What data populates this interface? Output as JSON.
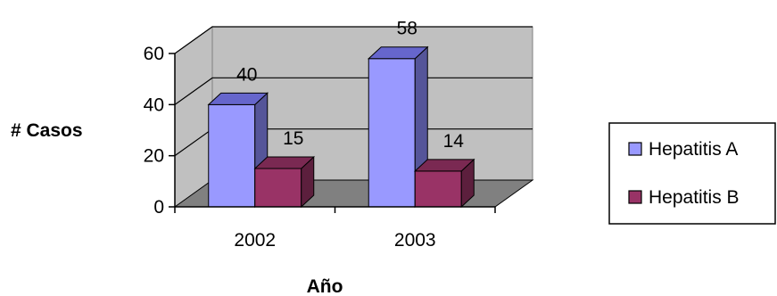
{
  "chart_data": {
    "type": "bar",
    "title": "",
    "xlabel": "Año",
    "ylabel": "# Casos",
    "categories": [
      "2002",
      "2003"
    ],
    "series": [
      {
        "name": "Hepatitis A",
        "values": [
          40,
          58
        ],
        "color": "#9999ff",
        "side": "#555599",
        "top": "#6666cc"
      },
      {
        "name": "Hepatitis B",
        "values": [
          15,
          14
        ],
        "color": "#993366",
        "side": "#5c1f3d",
        "top": "#7a2952"
      }
    ],
    "ylim": [
      0,
      60
    ],
    "yticks": [
      "0",
      "20",
      "40",
      "60"
    ],
    "grid": true,
    "legend_position": "right",
    "style": "3d-clustered"
  }
}
